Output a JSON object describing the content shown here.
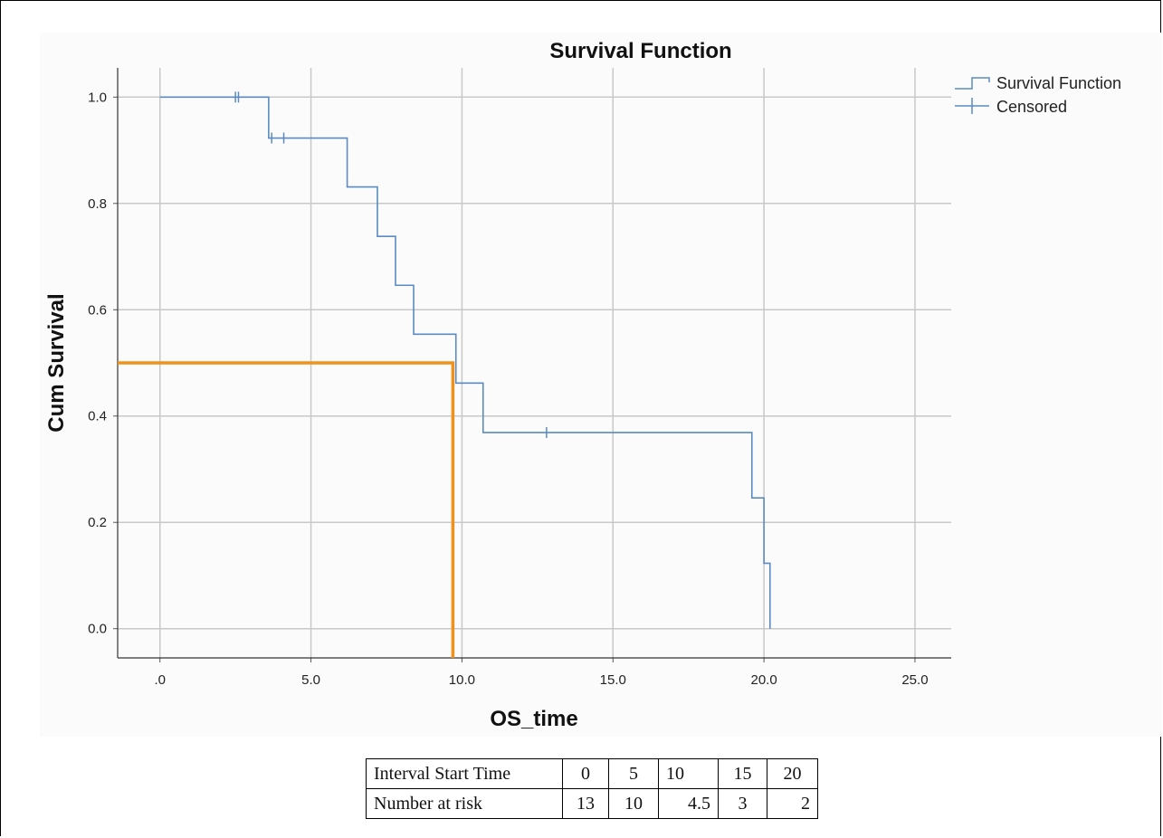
{
  "chart_data": {
    "type": "line",
    "title": "Survival Function",
    "xlabel": "OS_time",
    "ylabel": "Cum Survival",
    "xlim": [
      -1.4,
      26.2
    ],
    "ylim": [
      -0.055,
      1.055
    ],
    "xticks": [
      0,
      5,
      10,
      15,
      20,
      25
    ],
    "xtick_labels": [
      ".0",
      "5.0",
      "10.0",
      "15.0",
      "20.0",
      "25.0"
    ],
    "yticks": [
      0,
      0.2,
      0.4,
      0.6,
      0.8,
      1.0
    ],
    "ytick_labels": [
      "0.0",
      "0.2",
      "0.4",
      "0.6",
      "0.8",
      "1.0"
    ],
    "grid": true,
    "legend_position": "top-right",
    "series": [
      {
        "name": "Survival Function",
        "style": "step",
        "color": "#5b8bc2",
        "x": [
          0,
          3.6,
          6.2,
          7.2,
          7.8,
          8.4,
          9.8,
          10.7,
          19.6,
          20.0,
          20.2
        ],
        "y": [
          1.0,
          0.923,
          0.831,
          0.738,
          0.646,
          0.554,
          0.462,
          0.369,
          0.246,
          0.123,
          0.0
        ]
      },
      {
        "name": "Censored",
        "style": "marker",
        "color": "#5b8bc2",
        "x": [
          2.5,
          2.6,
          3.7,
          4.1,
          12.8
        ],
        "y": [
          1.0,
          1.0,
          0.923,
          0.923,
          0.369
        ]
      }
    ],
    "annotations": [
      {
        "type": "median-guide",
        "color": "#f0921a",
        "points": [
          [
            -1.4,
            0.5
          ],
          [
            9.7,
            0.5
          ],
          [
            9.7,
            -0.055
          ]
        ]
      }
    ]
  },
  "risk_table": {
    "header_label": "Interval Start Time",
    "header_values": [
      "0",
      "5",
      "10",
      "15",
      "20"
    ],
    "row_label": "Number at risk",
    "row_values": [
      "13",
      "10",
      "4.5",
      "3",
      "2"
    ]
  }
}
